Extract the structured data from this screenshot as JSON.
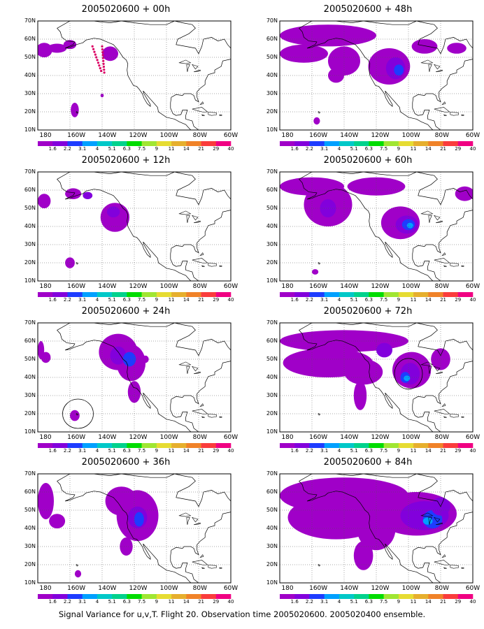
{
  "caption": "Signal Variance for u,v,T. Flight 20. Observation time 2005020600. 2005020400 ensemble.",
  "panels": [
    {
      "title": "2005020600 + 00h"
    },
    {
      "title": "2005020600 + 48h"
    },
    {
      "title": "2005020600 + 12h"
    },
    {
      "title": "2005020600 + 60h"
    },
    {
      "title": "2005020600 + 24h"
    },
    {
      "title": "2005020600 + 72h"
    },
    {
      "title": "2005020600 + 36h"
    },
    {
      "title": "2005020600 + 84h"
    }
  ],
  "lat_labels": [
    "70N",
    "60N",
    "50N",
    "40N",
    "30N",
    "20N",
    "10N"
  ],
  "lon_labels": [
    "180",
    "160W",
    "140W",
    "120W",
    "100W",
    "80W",
    "60W"
  ],
  "colorbar": {
    "labels": [
      "1.6",
      "2.2",
      "3.1",
      "4",
      "5.1",
      "6.3",
      "7.5",
      "9",
      "11",
      "14",
      "21",
      "29",
      "40"
    ],
    "colors": [
      "#a000c8",
      "#8200dc",
      "#1e3cff",
      "#00a0ff",
      "#00c8c8",
      "#00d28c",
      "#00dc00",
      "#a0e632",
      "#e6dc32",
      "#e6af2d",
      "#f08228",
      "#fa3c3c",
      "#f00082"
    ]
  },
  "colors": {
    "low": "#a000c8",
    "mid": "#8200dc",
    "high": "#1e3cff",
    "peak": "#00a0ff",
    "obs": "#dc0064"
  }
}
